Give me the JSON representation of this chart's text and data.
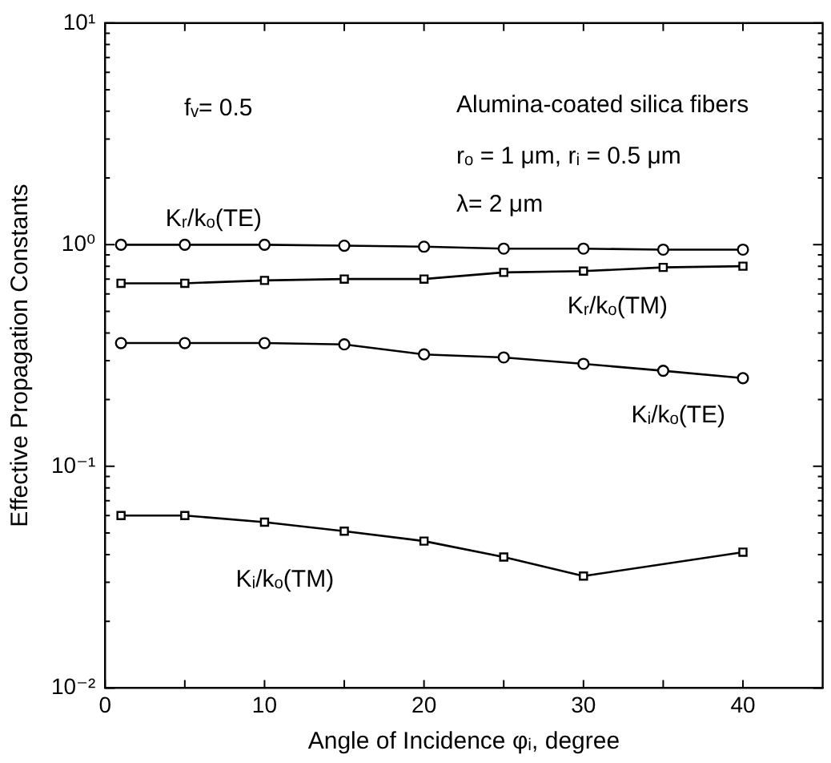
{
  "chart_data": {
    "type": "line",
    "xlabel": "Angle of Incidence φᵢ, degree",
    "ylabel": "Effective Propagation Constants",
    "log": "y",
    "legend": false,
    "grid": false,
    "line_style": "solid",
    "annotations": [
      "fᵥ= 0.5",
      "Alumina-coated silica fibers",
      "rₒ = 1 μm, rᵢ = 0.5 μm",
      "λ= 2 μm"
    ],
    "xlim": [
      0,
      45
    ],
    "xticks": [
      0,
      {
        "value": 5,
        "label": null
      },
      10,
      {
        "value": 15,
        "label": null
      },
      20,
      {
        "value": 25,
        "label": null
      },
      30,
      {
        "value": 35,
        "label": null
      },
      40
    ],
    "ylim": [
      0.01,
      10
    ],
    "yticks": [
      {
        "value": 0.01,
        "label": "10⁻²"
      },
      {
        "value": 0.1,
        "label": "10⁻¹"
      },
      {
        "value": 1,
        "label": "10⁰"
      },
      {
        "value": 10,
        "label": "10¹"
      }
    ],
    "x": [
      1,
      5,
      10,
      15,
      20,
      25,
      30,
      35,
      40
    ],
    "series": [
      {
        "name": "Kᵣ/kₒ(TE)",
        "color": "#000000",
        "marker": "circle",
        "values": [
          1.0,
          1.0,
          1.0,
          0.99,
          0.98,
          0.96,
          0.96,
          0.95,
          0.95
        ]
      },
      {
        "name": "Kᵣ/kₒ(TM)",
        "color": "#000000",
        "marker": "square",
        "values": [
          0.67,
          0.67,
          0.69,
          0.7,
          0.7,
          0.75,
          0.76,
          0.79,
          0.8
        ]
      },
      {
        "name": "Kᵢ/kₒ(TE)",
        "color": "#000000",
        "marker": "circle",
        "values": [
          0.36,
          0.36,
          0.36,
          0.355,
          0.32,
          0.31,
          0.29,
          0.27,
          0.25
        ]
      },
      {
        "name": "Kᵢ/kₒ(TM)",
        "color": "#000000",
        "marker": "square",
        "values": [
          0.06,
          0.06,
          0.056,
          0.051,
          0.046,
          0.039,
          0.032,
          null,
          0.041
        ]
      }
    ]
  }
}
